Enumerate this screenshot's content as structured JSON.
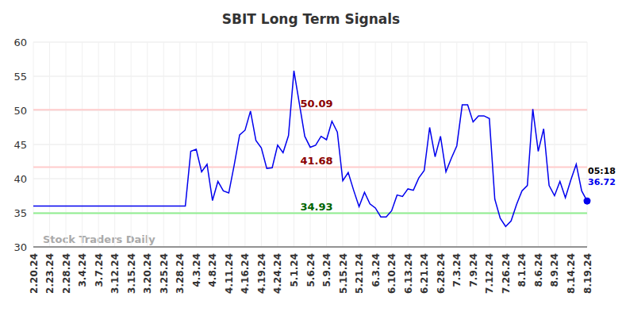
{
  "chart_data": {
    "type": "line",
    "title": "SBIT Long Term Signals",
    "categories": [
      "2.20.24",
      null,
      null,
      "2.23.24",
      null,
      null,
      "2.28.24",
      null,
      null,
      "3.4.24",
      null,
      null,
      "3.7.24",
      null,
      null,
      "3.12.24",
      null,
      null,
      "3.15.24",
      null,
      null,
      "3.20.24",
      null,
      null,
      "3.25.24",
      null,
      null,
      "3.28.24",
      null,
      null,
      "4.3.24",
      null,
      null,
      "4.8.24",
      null,
      null,
      "4.11.24",
      null,
      null,
      "4.16.24",
      null,
      null,
      "4.19.24",
      null,
      null,
      "4.24.24",
      null,
      null,
      "5.1.24",
      null,
      null,
      "5.6.24",
      null,
      null,
      "5.9.24",
      null,
      null,
      "5.15.24",
      null,
      null,
      "5.21.24",
      null,
      null,
      "6.3.24",
      null,
      null,
      "6.10.24",
      null,
      null,
      "6.13.24",
      null,
      null,
      "6.21.24",
      null,
      null,
      "6.28.24",
      null,
      null,
      "7.3.24",
      null,
      null,
      "7.9.24",
      null,
      null,
      "7.12.24",
      null,
      null,
      "7.26.24",
      null,
      null,
      "8.1.24",
      null,
      null,
      "8.6.24",
      null,
      null,
      "8.9.24",
      null,
      null,
      "8.14.24",
      null,
      null,
      "8.19.24"
    ],
    "values": [
      36,
      36,
      36,
      36,
      36,
      36,
      36,
      36,
      36,
      36,
      36,
      36,
      36,
      36,
      36,
      36,
      36,
      36,
      36,
      36,
      36,
      36,
      36,
      36,
      36,
      36,
      36,
      36,
      36,
      44,
      44.3,
      41,
      42.1,
      36.8,
      39.6,
      38.2,
      37.9,
      42,
      46.4,
      47.1,
      49.9,
      45.6,
      44.5,
      41.5,
      41.6,
      44.9,
      43.8,
      46.3,
      55.8,
      51,
      46.2,
      44.6,
      44.9,
      46.2,
      45.7,
      48.4,
      46.8,
      39.7,
      40.9,
      38.3,
      35.9,
      38,
      36.3,
      35.7,
      34.4,
      34.4,
      35.3,
      37.6,
      37.4,
      38.5,
      38.3,
      40.1,
      41.2,
      47.5,
      43.2,
      46.2,
      41,
      43,
      44.8,
      50.8,
      50.8,
      48.3,
      49.2,
      49.2,
      48.8,
      37,
      34.2,
      33,
      33.8,
      36.2,
      38.2,
      39,
      50.2,
      44,
      47.3,
      39,
      37.5,
      39.6,
      37.2,
      39.8,
      42.1,
      38.2,
      36.72
    ],
    "color": "#0000ee",
    "ylim": [
      30,
      60
    ],
    "yticks": [
      30,
      35,
      40,
      45,
      50,
      55,
      60
    ],
    "grid": true,
    "levels": [
      {
        "value": 50.09,
        "color": "#ffcccc",
        "label_color": "#8b0000"
      },
      {
        "value": 41.68,
        "color": "#ffcccc",
        "label_color": "#8b0000"
      },
      {
        "value": 34.93,
        "color": "#90ee90",
        "label_color": "#006400"
      }
    ],
    "last_point_time": "05:18",
    "watermark": "Stock Traders Daily"
  }
}
